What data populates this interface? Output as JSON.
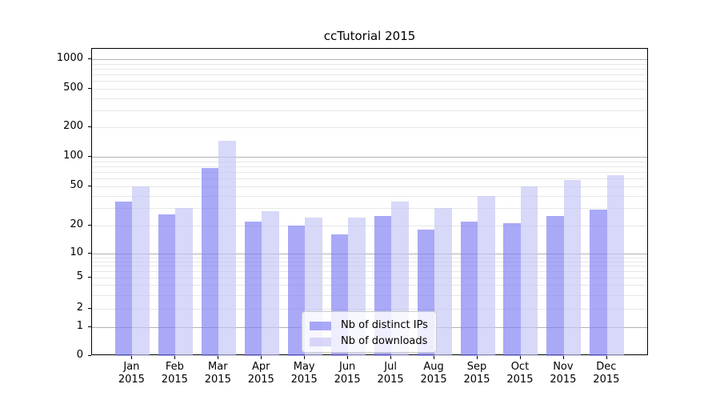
{
  "chart_data": {
    "type": "bar",
    "title": "ccTutorial 2015",
    "xlabel": "",
    "ylabel": "",
    "categories": [
      "Jan",
      "Feb",
      "Mar",
      "Apr",
      "May",
      "Jun",
      "Jul",
      "Aug",
      "Sep",
      "Oct",
      "Nov",
      "Dec"
    ],
    "year_label": "2015",
    "series": [
      {
        "name": "Nb of distinct IPs",
        "color": "rgba(125,125,243,0.66)",
        "values": [
          35,
          26,
          77,
          22,
          20,
          16,
          25,
          18,
          22,
          21,
          25,
          29
        ]
      },
      {
        "name": "Nb of downloads",
        "color": "rgba(196,196,244,0.66)",
        "values": [
          50,
          30,
          145,
          28,
          24,
          24,
          35,
          30,
          40,
          50,
          58,
          65
        ]
      }
    ],
    "yaxis": {
      "scale": "symlog",
      "ticks": [
        0,
        1,
        2,
        5,
        10,
        20,
        50,
        100,
        200,
        500,
        1000
      ],
      "tick_labels": [
        "0",
        "1",
        "2",
        "5",
        "10",
        "20",
        "50",
        "100",
        "200",
        "500",
        "1000"
      ],
      "ylim": [
        0,
        1280
      ],
      "grid": true,
      "major_grid_values": [
        1,
        10,
        100,
        1000
      ]
    },
    "legend": {
      "position": "lower-center",
      "entries": [
        "Nb of distinct IPs",
        "Nb of downloads"
      ]
    }
  }
}
